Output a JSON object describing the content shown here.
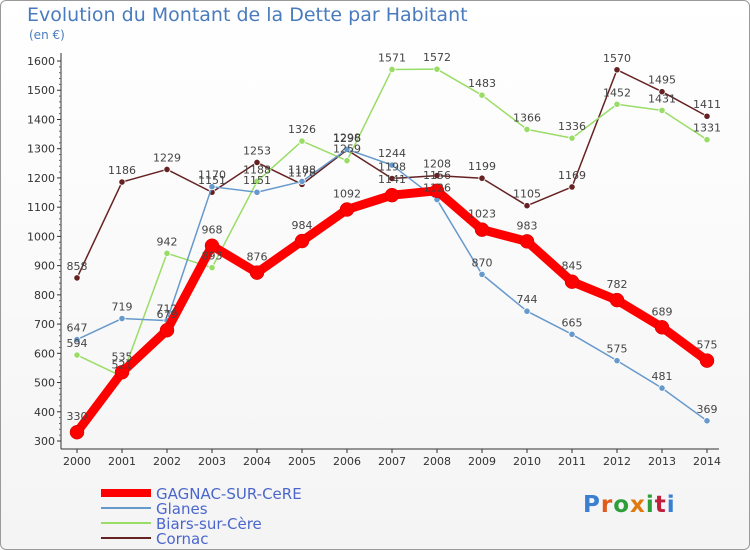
{
  "title": "Evolution du Montant de la Dette par Habitant",
  "unit_label": "(en €)",
  "logo_text": "Proxiti",
  "colors": {
    "gagnac": "#ff0000",
    "glanes": "#6699cc",
    "biars": "#99dd66",
    "cornac": "#662222",
    "legend_text": "#4a66cc",
    "title": "#4a7bbd"
  },
  "chart_data": {
    "type": "line",
    "title": "Evolution du Montant de la Dette par Habitant",
    "ylabel": "(en €)",
    "xlabel": "",
    "x": [
      2000,
      2001,
      2002,
      2003,
      2004,
      2005,
      2006,
      2007,
      2008,
      2009,
      2010,
      2011,
      2012,
      2013,
      2014
    ],
    "ylim": [
      300,
      1600
    ],
    "yticks": [
      300,
      400,
      500,
      600,
      700,
      800,
      900,
      1000,
      1100,
      1200,
      1300,
      1400,
      1500,
      1600
    ],
    "grid": false,
    "legend_position": "bottom-left",
    "series": [
      {
        "name": "GAGNAC-SUR-CèRE",
        "color": "#ff0000",
        "values": [
          330,
          535,
          679,
          968,
          876,
          984,
          1092,
          1141,
          1156,
          1023,
          983,
          845,
          782,
          689,
          575
        ]
      },
      {
        "name": "Glanes",
        "color": "#6699cc",
        "values": [
          647,
          719,
          712,
          1170,
          1151,
          1188,
          1298,
          1244,
          1126,
          870,
          744,
          665,
          575,
          481,
          369
        ]
      },
      {
        "name": "Biars-sur-Cère",
        "color": "#99dd66",
        "values": [
          594,
          521,
          942,
          893,
          1188,
          1326,
          1259,
          1571,
          1572,
          1483,
          1366,
          1336,
          1452,
          1431,
          1331
        ]
      },
      {
        "name": "Cornac",
        "color": "#662222",
        "values": [
          858,
          1186,
          1229,
          1151,
          1253,
          1178,
          1296,
          1198,
          1208,
          1199,
          1105,
          1169,
          1570,
          1495,
          1411
        ]
      }
    ]
  },
  "legend": [
    {
      "label": "GAGNAC-SUR-CeRE"
    },
    {
      "label": "Glanes"
    },
    {
      "label": "Biars-sur-Cère"
    },
    {
      "label": "Cornac"
    }
  ]
}
